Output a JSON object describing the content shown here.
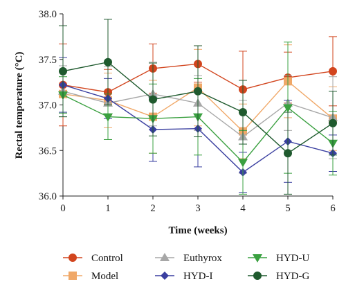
{
  "chart_data": {
    "type": "line",
    "xlabel": "Time (weeks)",
    "ylabel": "Rectal temperature (°C)",
    "x": [
      0,
      1,
      2,
      3,
      4,
      5,
      6
    ],
    "xlim": [
      0,
      6
    ],
    "ylim": [
      36.0,
      38.0
    ],
    "yticks": [
      "36.0",
      "36.5",
      "37.0",
      "37.5",
      "38.0"
    ],
    "xticks": [
      "0",
      "1",
      "2",
      "3",
      "4",
      "5",
      "6"
    ],
    "grid": false,
    "legend_position": "bottom",
    "series": [
      {
        "name": "Control",
        "color": "#d2451e",
        "marker": "circle",
        "values": [
          37.22,
          37.14,
          37.4,
          37.45,
          37.17,
          37.3,
          37.37
        ],
        "errors": [
          0.45,
          0.25,
          0.27,
          0.2,
          0.42,
          0.28,
          0.38
        ]
      },
      {
        "name": "Model",
        "color": "#f0a868",
        "marker": "square",
        "values": [
          37.12,
          37.05,
          36.87,
          37.19,
          36.71,
          37.26,
          36.85
        ],
        "errors": [
          0.25,
          0.3,
          0.4,
          0.42,
          0.3,
          0.4,
          0.35
        ]
      },
      {
        "name": "Euthyrox",
        "color": "#a7a7a7",
        "marker": "triangle-up",
        "values": [
          37.15,
          37.02,
          37.12,
          37.02,
          36.65,
          37.02,
          36.86
        ],
        "errors": [
          0.28,
          0.4,
          0.35,
          0.3,
          0.4,
          0.3,
          0.45
        ]
      },
      {
        "name": "HYD-I",
        "color": "#3a3fa0",
        "marker": "diamond",
        "values": [
          37.22,
          37.07,
          36.73,
          36.74,
          36.26,
          36.6,
          36.47
        ],
        "errors": [
          0.3,
          0.22,
          0.35,
          0.42,
          0.22,
          0.45,
          0.2
        ]
      },
      {
        "name": "HYD-U",
        "color": "#3aa040",
        "marker": "triangle-down",
        "values": [
          37.11,
          36.87,
          36.85,
          36.87,
          36.37,
          36.97,
          36.58
        ],
        "errors": [
          0.2,
          0.25,
          0.38,
          0.42,
          0.35,
          0.72,
          0.35
        ]
      },
      {
        "name": "HYD-G",
        "color": "#1f5a2e",
        "marker": "circle",
        "values": [
          37.37,
          37.47,
          37.06,
          37.15,
          36.92,
          36.47,
          36.8
        ],
        "errors": [
          0.5,
          0.47,
          0.4,
          0.5,
          0.35,
          0.45,
          0.35
        ]
      }
    ]
  }
}
